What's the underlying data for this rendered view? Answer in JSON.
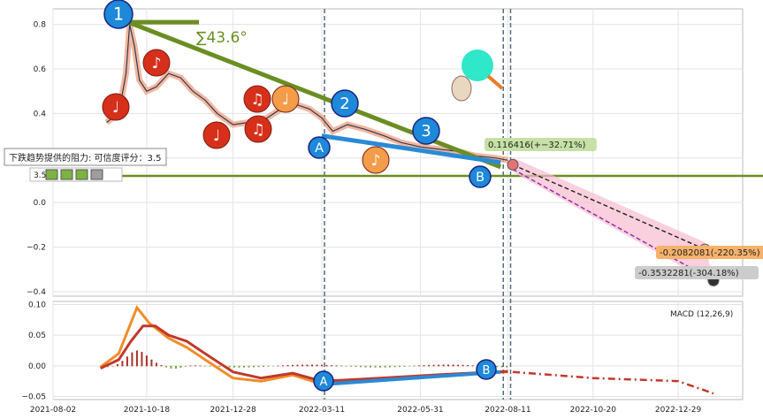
{
  "chart_data": [
    {
      "type": "line",
      "panel": "price",
      "ylim": [
        -0.42,
        0.87
      ],
      "yticks": [
        0.8,
        0.6,
        0.4,
        0.2,
        0.0,
        -0.2,
        -0.4
      ],
      "ytick_labels": [
        "0.8",
        "0.6",
        "0.4",
        "0.2",
        "0.0",
        "−0.2",
        "−0.4"
      ],
      "xlim": [
        "2021-08-02",
        "2023-02-20"
      ],
      "xticks": [
        "2021-08-02",
        "2021-10-18",
        "2021-12-28",
        "2022-03-11",
        "2022-05-31",
        "2022-08-11",
        "2022-10-20",
        "2022-12-29"
      ],
      "grid": true,
      "price": {
        "x": [
          "2021-09-15",
          "2021-09-25",
          "2021-10-01",
          "2021-10-04",
          "2021-10-08",
          "2021-10-12",
          "2021-10-18",
          "2021-10-26",
          "2021-11-05",
          "2021-11-15",
          "2021-11-25",
          "2021-12-05",
          "2021-12-15",
          "2021-12-28",
          "2022-01-10",
          "2022-01-25",
          "2022-02-05",
          "2022-02-18",
          "2022-03-01",
          "2022-03-11",
          "2022-03-20",
          "2022-04-01",
          "2022-04-15",
          "2022-05-01",
          "2022-05-15",
          "2022-05-31",
          "2022-06-15",
          "2022-07-01",
          "2022-07-15",
          "2022-08-01",
          "2022-08-11"
        ],
        "values": [
          0.36,
          0.4,
          0.58,
          0.8,
          0.7,
          0.55,
          0.5,
          0.52,
          0.58,
          0.56,
          0.5,
          0.46,
          0.4,
          0.35,
          0.36,
          0.38,
          0.42,
          0.44,
          0.42,
          0.38,
          0.32,
          0.35,
          0.33,
          0.3,
          0.27,
          0.25,
          0.24,
          0.23,
          0.21,
          0.2,
          0.19
        ]
      },
      "trend_lines": [
        {
          "from": [
            "2021-10-03",
            0.81
          ],
          "to": [
            "2022-08-05",
            0.16
          ],
          "color": "#6b8e23"
        },
        {
          "from": [
            "2021-10-03",
            0.81
          ],
          "to": [
            "2021-11-30",
            0.81
          ],
          "color": "#6b8e23"
        }
      ],
      "horizontal_line": {
        "value": 0.12,
        "color": "#6b8e23"
      },
      "angle_label": "∑43.6°",
      "support_line_B": {
        "from": [
          "2022-03-11",
          0.3
        ],
        "to": [
          "2022-08-05",
          0.18
        ],
        "color": "#2a8ad4"
      },
      "projection": {
        "points": [
          [
            "2022-08-15",
            0.17
          ],
          [
            "2023-01-20",
            -0.21
          ],
          [
            "2023-01-27",
            -0.35
          ]
        ],
        "labels": [
          {
            "text": "0.116416(+−32.71%)",
            "bg": "#c5e1a5"
          },
          {
            "text": "-0.2082081(-220.35%)",
            "bg": "#f6b26b"
          },
          {
            "text": "-0.3532281(-304.18%)",
            "bg": "#cccccc"
          }
        ]
      },
      "markers": [
        {
          "label": "1",
          "color": "#1e88d9"
        },
        {
          "label": "2",
          "color": "#1e88d9"
        },
        {
          "label": "3",
          "color": "#1e88d9"
        },
        {
          "label": "A",
          "color": "#1e88d9"
        },
        {
          "label": "B",
          "color": "#1e88d9"
        }
      ],
      "note_markers": [
        "♩",
        "♪",
        "♩",
        "♫",
        "♫",
        "♩",
        "♪"
      ],
      "resistance_label": "下跌趋势提供的阻力: 可信度评分：3.5",
      "rating_value": "3.5"
    },
    {
      "type": "line",
      "panel": "macd",
      "legend": "MACD (12,26,9)",
      "ylim": [
        -0.055,
        0.105
      ],
      "yticks": [
        0.1,
        0.05,
        0.0,
        -0.05
      ],
      "ytick_labels": [
        "0.10",
        "0.05",
        "0.00",
        "−0.05"
      ],
      "series": [
        {
          "color": "#f28c28",
          "x": [
            "2021-09-10",
            "2021-09-25",
            "2021-10-05",
            "2021-10-10",
            "2021-10-20",
            "2021-11-05",
            "2021-11-20",
            "2021-12-05",
            "2021-12-28",
            "2022-01-20",
            "2022-02-15",
            "2022-03-11",
            "2022-04-10",
            "2022-05-15",
            "2022-06-20",
            "2022-07-20",
            "2022-08-11"
          ],
          "values": [
            -0.002,
            0.02,
            0.07,
            0.095,
            0.07,
            0.045,
            0.03,
            0.01,
            -0.02,
            -0.025,
            -0.015,
            -0.03,
            -0.025,
            -0.02,
            -0.015,
            -0.012,
            -0.01
          ]
        },
        {
          "color": "#c0392b",
          "x": [
            "2021-09-10",
            "2021-09-25",
            "2021-10-05",
            "2021-10-15",
            "2021-10-25",
            "2021-11-05",
            "2021-11-20",
            "2021-12-05",
            "2021-12-28",
            "2022-01-20",
            "2022-02-15",
            "2022-03-11",
            "2022-04-10",
            "2022-05-15",
            "2022-06-20",
            "2022-07-20",
            "2022-08-11"
          ],
          "values": [
            -0.004,
            0.01,
            0.04,
            0.065,
            0.065,
            0.05,
            0.04,
            0.02,
            -0.01,
            -0.02,
            -0.012,
            -0.025,
            -0.022,
            -0.018,
            -0.014,
            -0.011,
            -0.009
          ]
        }
      ],
      "projection_x": [
        "2022-08-15",
        "2022-10-20",
        "2022-12-29",
        "2023-01-27"
      ],
      "projection_values": [
        -0.01,
        -0.02,
        -0.025,
        -0.045
      ]
    }
  ],
  "texts": {
    "rating": "3.5",
    "macd_legend": "MACD (12,26,9)"
  }
}
